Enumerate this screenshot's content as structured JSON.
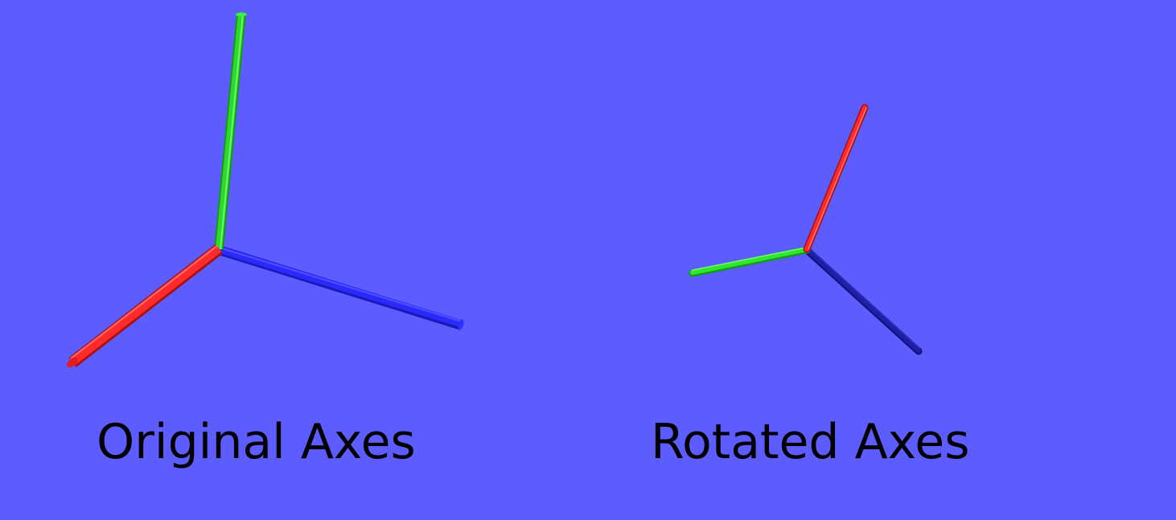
{
  "colors": {
    "background": "#5c5cff",
    "x_axis": "#ff2a2a",
    "y_axis": "#22e022",
    "z_axis": "#2424ff",
    "z_axis_rotated": "#1e1ea8",
    "caption": "#000000"
  },
  "panels": [
    {
      "id": "original",
      "caption": "Original Axes",
      "axes": [
        {
          "axis": "x",
          "color": "#ff2a2a"
        },
        {
          "axis": "y",
          "color": "#22e022"
        },
        {
          "axis": "z",
          "color": "#2424ff"
        }
      ]
    },
    {
      "id": "rotated",
      "caption": "Rotated Axes",
      "axes": [
        {
          "axis": "x",
          "color": "#ff2a2a"
        },
        {
          "axis": "y",
          "color": "#22e022"
        },
        {
          "axis": "z",
          "color": "#1e1ea8"
        }
      ]
    }
  ]
}
